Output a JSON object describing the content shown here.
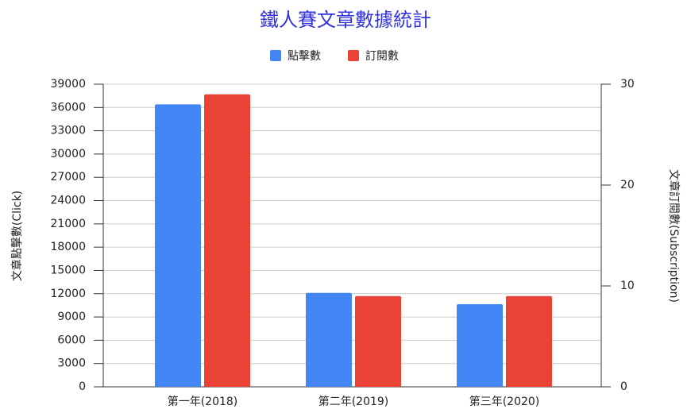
{
  "chart_data": {
    "type": "bar",
    "title": "鐵人賽文章數據統計",
    "categories": [
      "第一年(2018)",
      "第二年(2019)",
      "第三年(2020)"
    ],
    "series": [
      {
        "name": "點擊數",
        "color": "#4285f4",
        "values": [
          36400,
          12100,
          10650
        ]
      },
      {
        "name": "訂閱數",
        "color": "#ea4335",
        "values": [
          29,
          9,
          9
        ],
        "axis": "y2"
      }
    ],
    "ylabel": "文章點擊數(Click)",
    "y2label": "文章訂閱數(Subscription)",
    "ylim": [
      0,
      39000
    ],
    "yticks": [
      0,
      3000,
      6000,
      9000,
      12000,
      15000,
      18000,
      21000,
      24000,
      27000,
      30000,
      33000,
      36000,
      39000
    ],
    "y2lim": [
      0,
      30
    ],
    "y2ticks": [
      0,
      10,
      20,
      30
    ],
    "grid": true,
    "legend": "top"
  }
}
